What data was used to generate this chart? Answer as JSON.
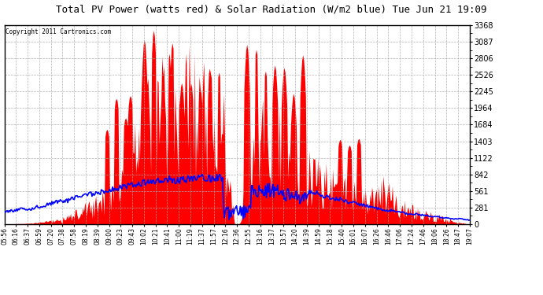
{
  "title": "Total PV Power (watts red) & Solar Radiation (W/m2 blue) Tue Jun 21 19:09",
  "copyright_text": "Copyright 2011 Cartronics.com",
  "background_color": "#ffffff",
  "plot_bg_color": "#ffffff",
  "red_color": "#ff0000",
  "blue_color": "#0000ff",
  "grid_color": "#cccccc",
  "y_max": 3367.5,
  "y_min": 0.0,
  "y_ticks": [
    0.0,
    280.6,
    561.2,
    841.9,
    1122.5,
    1403.1,
    1683.7,
    1964.4,
    2245.0,
    2525.6,
    2806.2,
    3086.9,
    3367.5
  ],
  "x_labels": [
    "05:56",
    "06:16",
    "06:37",
    "06:59",
    "07:20",
    "07:38",
    "07:58",
    "08:19",
    "08:39",
    "09:00",
    "09:23",
    "09:43",
    "10:02",
    "10:21",
    "10:41",
    "11:00",
    "11:19",
    "11:37",
    "11:57",
    "12:16",
    "12:36",
    "12:55",
    "13:16",
    "13:37",
    "13:57",
    "14:20",
    "14:39",
    "14:59",
    "15:18",
    "15:40",
    "16:01",
    "16:07",
    "16:26",
    "16:46",
    "17:06",
    "17:24",
    "17:46",
    "18:06",
    "18:26",
    "18:47",
    "19:07"
  ]
}
